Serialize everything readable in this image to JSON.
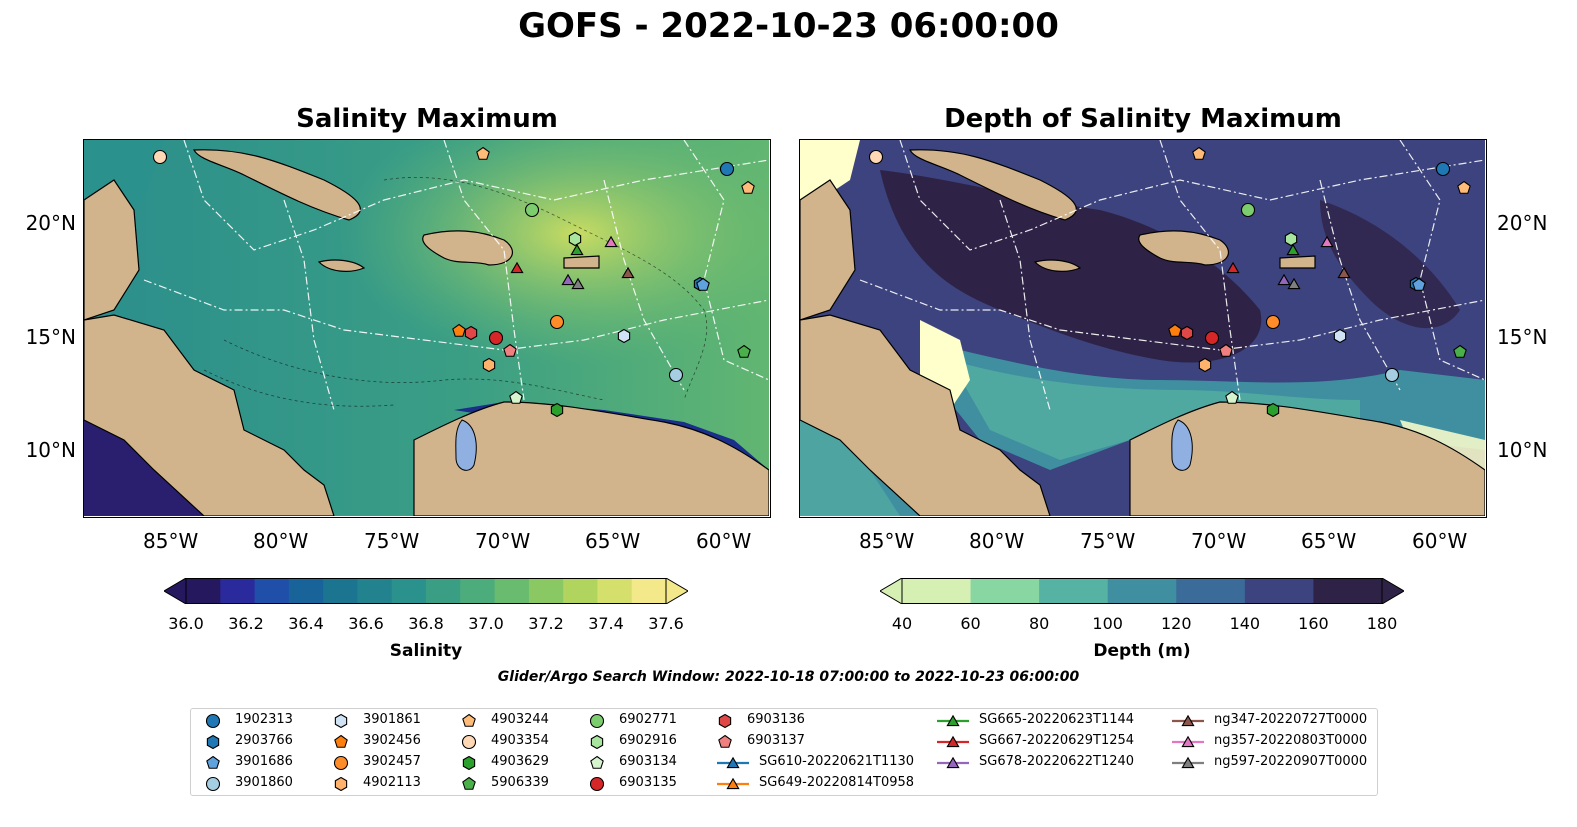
{
  "suptitle": "GOFS - 2022-10-23 06:00:00",
  "left_panel": {
    "title": "Salinity Maximum",
    "colorbar": {
      "label": "Salinity",
      "ticks": [
        "36.0",
        "36.2",
        "36.4",
        "36.6",
        "36.8",
        "37.0",
        "37.2",
        "37.4",
        "37.6"
      ],
      "colors": [
        "#26185f",
        "#2a2a9c",
        "#1f4fa8",
        "#18649a",
        "#1b7591",
        "#22838f",
        "#2b918c",
        "#3a9e85",
        "#4dac7b",
        "#68bb6f",
        "#8ac863",
        "#b1d45e",
        "#d5df6c",
        "#f3e98a"
      ]
    }
  },
  "right_panel": {
    "title": "Depth of Salinity Maximum",
    "colorbar": {
      "label": "Depth (m)",
      "ticks": [
        "40",
        "60",
        "80",
        "100",
        "120",
        "140",
        "160",
        "180"
      ],
      "colors": [
        "#d6efb3",
        "#88d6a2",
        "#56b2a2",
        "#3f8fa0",
        "#3b6b98",
        "#3c437e",
        "#2e2347"
      ]
    }
  },
  "lat_labels": [
    "20°N",
    "15°N",
    "10°N"
  ],
  "lon_labels": [
    "85°W",
    "80°W",
    "75°W",
    "70°W",
    "65°W",
    "60°W"
  ],
  "search_window": "Glider/Argo Search Window: 2022-10-18 07:00:00 to 2022-10-23 06:00:00",
  "legend": [
    {
      "label": "1902313",
      "marker": "circle",
      "color": "#1f77b4"
    },
    {
      "label": "2903766",
      "marker": "hexagon",
      "color": "#1f77b4"
    },
    {
      "label": "3901686",
      "marker": "pentagon",
      "color": "#5fa2dd"
    },
    {
      "label": "3901860",
      "marker": "circle",
      "color": "#a6cee3"
    },
    {
      "label": "3901861",
      "marker": "hexagon",
      "color": "#cfe3f5"
    },
    {
      "label": "3902456",
      "marker": "pentagon",
      "color": "#ff7f0e"
    },
    {
      "label": "3902457",
      "marker": "circle",
      "color": "#ff8c29"
    },
    {
      "label": "4902113",
      "marker": "hexagon",
      "color": "#ffb26b"
    },
    {
      "label": "4903244",
      "marker": "pentagon",
      "color": "#ffbb78"
    },
    {
      "label": "4903354",
      "marker": "circle",
      "color": "#ffd8b5"
    },
    {
      "label": "4903629",
      "marker": "hexagon",
      "color": "#2ca02c"
    },
    {
      "label": "5906339",
      "marker": "pentagon",
      "color": "#4ab04a"
    },
    {
      "label": "6902771",
      "marker": "circle",
      "color": "#7ccd6e"
    },
    {
      "label": "6902916",
      "marker": "hexagon",
      "color": "#a8e6a0"
    },
    {
      "label": "6903134",
      "marker": "pentagon",
      "color": "#d6f5cf"
    },
    {
      "label": "6903135",
      "marker": "circle",
      "color": "#d62728"
    },
    {
      "label": "6903136",
      "marker": "hexagon",
      "color": "#e04848"
    },
    {
      "label": "6903137",
      "marker": "pentagon",
      "color": "#f08080"
    },
    {
      "label": "SG610-20220621T1130",
      "marker": "triangle-line",
      "color": "#1f77b4"
    },
    {
      "label": "SG649-20220814T0958",
      "marker": "triangle-line",
      "color": "#ff7f0e"
    },
    {
      "label": "SG665-20220623T1144",
      "marker": "triangle-line",
      "color": "#2ca02c"
    },
    {
      "label": "SG667-20220629T1254",
      "marker": "triangle-line",
      "color": "#d62728"
    },
    {
      "label": "SG678-20220622T1240",
      "marker": "triangle-line",
      "color": "#9467bd"
    },
    {
      "label": "ng347-20220727T0000",
      "marker": "triangle-line",
      "color": "#8c564b"
    },
    {
      "label": "ng357-20220803T0000",
      "marker": "triangle-line",
      "color": "#e377c2"
    },
    {
      "label": "ng597-20220907T0000",
      "marker": "triangle-line",
      "color": "#7f7f7f"
    }
  ],
  "colors": {
    "land": "#d2b48c",
    "lake": "#8fb0e0",
    "coast": "#000000"
  }
}
